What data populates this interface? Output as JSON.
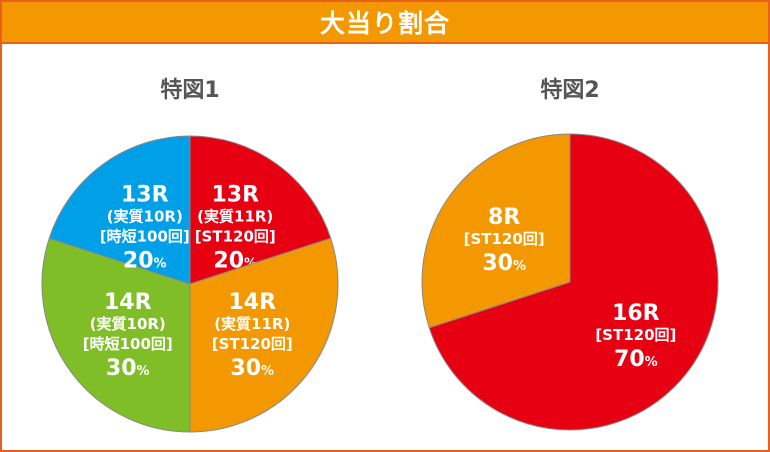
{
  "header": {
    "title": "大当り割合"
  },
  "chart_data": [
    {
      "type": "pie",
      "title": "特図1",
      "start": "top",
      "direction": "clockwise",
      "slices": [
        {
          "label": "13R",
          "lines": [
            "(実質11R)",
            "[ST120回]"
          ],
          "value": 20,
          "display": "20",
          "color": "#e60012"
        },
        {
          "label": "14R",
          "lines": [
            "(実質11R)",
            "[ST120回]"
          ],
          "value": 30,
          "display": "30",
          "color": "#f39800"
        },
        {
          "label": "14R",
          "lines": [
            "(実質10R)",
            "[時短100回]"
          ],
          "value": 30,
          "display": "30",
          "color": "#7fbe26"
        },
        {
          "label": "13R",
          "lines": [
            "(実質10R)",
            "[時短100回]"
          ],
          "value": 20,
          "display": "20",
          "color": "#00a0e9"
        }
      ],
      "unit": "%"
    },
    {
      "type": "pie",
      "title": "特図2",
      "start": "top",
      "direction": "clockwise",
      "slices": [
        {
          "label": "16R",
          "lines": [
            "[ST120回]"
          ],
          "value": 70,
          "display": "70",
          "color": "#e60012"
        },
        {
          "label": "8R",
          "lines": [
            "[ST120回]"
          ],
          "value": 30,
          "display": "30",
          "color": "#f39800"
        }
      ],
      "unit": "%"
    }
  ]
}
